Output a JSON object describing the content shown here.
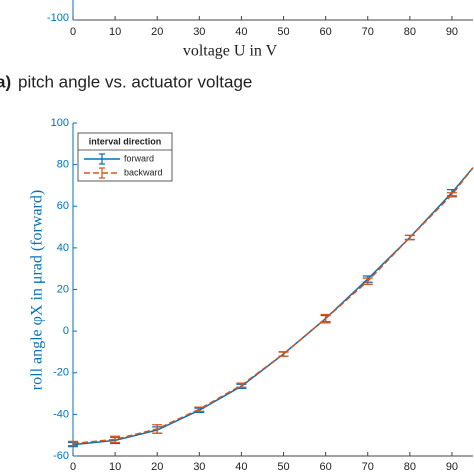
{
  "chart_data": [
    {
      "type": "axis",
      "x_label": "voltage U in V",
      "xlim": [
        0,
        95
      ],
      "xticks": [
        0,
        10,
        20,
        30,
        40,
        50,
        60,
        70,
        80,
        90
      ],
      "yticks": [
        -100
      ]
    },
    {
      "type": "line",
      "y_label": "roll angle φX in μrad (forward)",
      "legend_title": "interval direction",
      "legend": "upper left",
      "xlim": [
        0,
        95
      ],
      "xticks": [
        0,
        10,
        20,
        30,
        40,
        50,
        60,
        70,
        80,
        90
      ],
      "ylim": [
        -60,
        100
      ],
      "yticks": [
        -60,
        -40,
        -20,
        0,
        20,
        40,
        60,
        80,
        100
      ],
      "x": [
        0,
        10,
        20,
        30,
        40,
        50,
        60,
        70,
        80,
        90,
        95
      ],
      "series": [
        {
          "name": "forward",
          "color": "#0072bd",
          "dash": false,
          "values": [
            -54.5,
            -52.5,
            -47.5,
            -38,
            -26.5,
            -11,
            6,
            25,
            45,
            66.5,
            78.5
          ],
          "errors": [
            1,
            1.5,
            1.5,
            1,
            1,
            1,
            1.5,
            1.5,
            1,
            1.5,
            null
          ]
        },
        {
          "name": "backward",
          "color": "#d95319",
          "dash": true,
          "values": [
            -54,
            -52,
            -47,
            -37.5,
            -26,
            -11,
            6,
            24,
            45,
            65.5,
            78.5
          ],
          "errors": [
            1,
            1.5,
            2,
            1,
            1,
            1,
            2,
            1.5,
            1,
            1,
            null
          ]
        }
      ]
    }
  ],
  "caption": {
    "label": "a)",
    "text": "pitch angle vs. actuator voltage"
  }
}
